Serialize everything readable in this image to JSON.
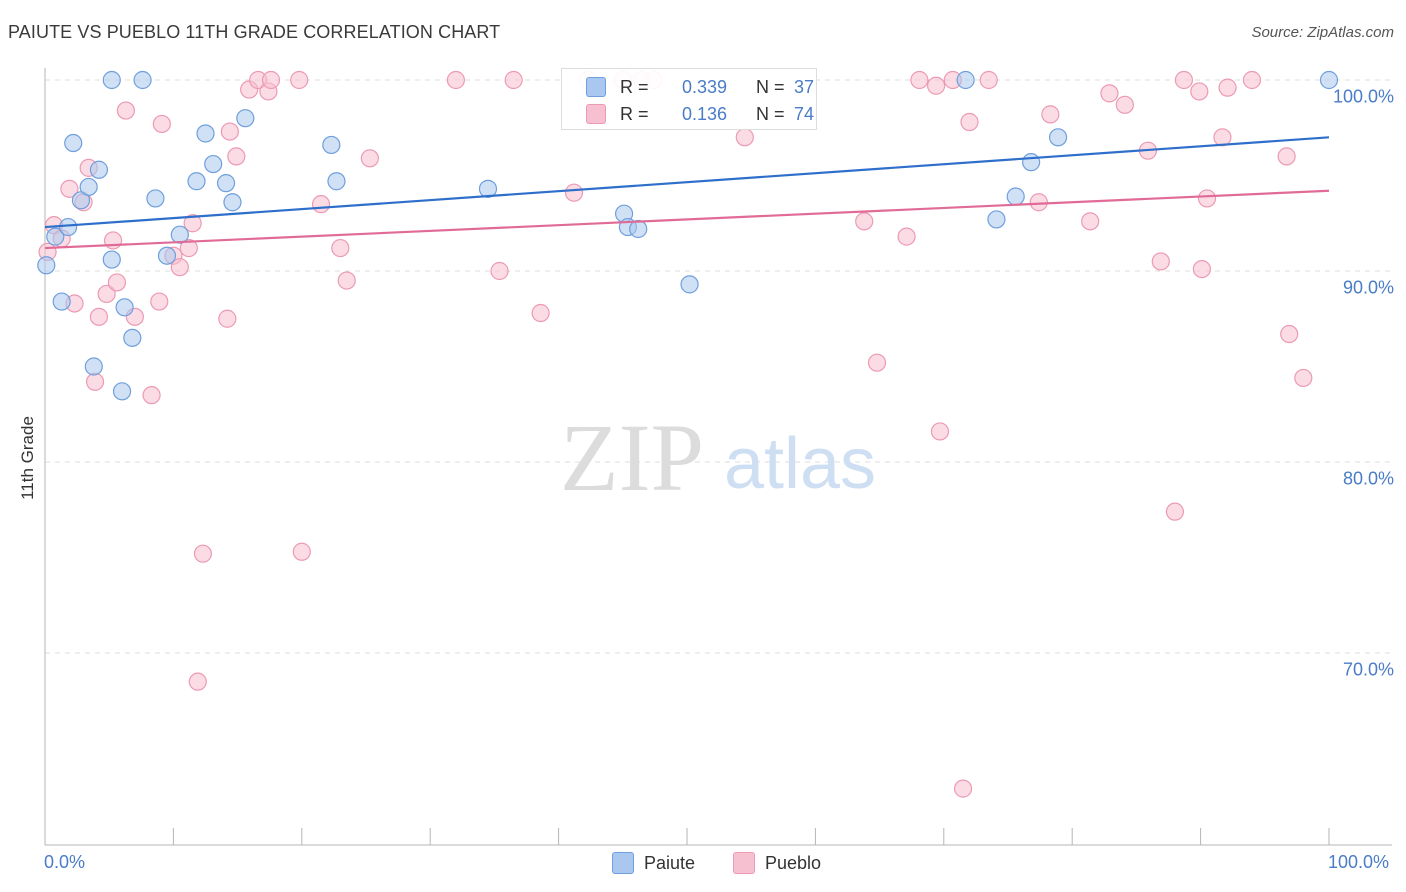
{
  "header": {
    "title": "PAIUTE VS PUEBLO 11TH GRADE CORRELATION CHART",
    "source": "Source: ZipAtlas.com"
  },
  "watermark": {
    "zip": "ZIP",
    "atlas": "atlas"
  },
  "colors": {
    "paiute_fill": "#aac8ef",
    "paiute_stroke": "#6f9fdc",
    "paiute_line": "#2e6fcb",
    "pueblo_fill": "#f7c0d0",
    "pueblo_stroke": "#ec9ab4",
    "pueblo_line": "#e06b96",
    "tick_text": "#4a7cc7",
    "grid": "#dddddd"
  },
  "stats": {
    "paiute": {
      "r_label": "R =",
      "r_value": "0.339",
      "n_label": "N =",
      "n_value": "37"
    },
    "pueblo": {
      "r_label": "R =",
      "r_value": "0.136",
      "n_label": "N =",
      "n_value": "74"
    }
  },
  "legend": {
    "paiute": "Paiute",
    "pueblo": "Pueblo"
  },
  "chart_data": {
    "type": "scatter",
    "title": "PAIUTE VS PUEBLO 11TH GRADE CORRELATION CHART",
    "xlabel": "",
    "ylabel": "11th Grade",
    "xlim": [
      0,
      100
    ],
    "ylim": [
      62,
      101
    ],
    "x_tick_labels": [
      "0.0%",
      "100.0%"
    ],
    "y_ticks": [
      {
        "value": 100,
        "label": "100.0%"
      },
      {
        "value": 90,
        "label": "90.0%"
      },
      {
        "value": 80,
        "label": "80.0%"
      },
      {
        "value": 70,
        "label": "70.0%"
      }
    ],
    "series": [
      {
        "name": "Paiute",
        "r": 0.339,
        "n": 37,
        "trend": {
          "x": [
            0,
            100
          ],
          "y": [
            92.3,
            97.0
          ]
        },
        "points": [
          [
            0.1,
            90.3
          ],
          [
            0.8,
            91.8
          ],
          [
            1.3,
            88.4
          ],
          [
            1.8,
            92.3
          ],
          [
            2.2,
            96.7
          ],
          [
            2.8,
            93.7
          ],
          [
            3.4,
            94.4
          ],
          [
            3.8,
            85.0
          ],
          [
            4.2,
            95.3
          ],
          [
            5.2,
            90.6
          ],
          [
            5.2,
            100.0
          ],
          [
            6.0,
            83.7
          ],
          [
            6.2,
            88.1
          ],
          [
            6.8,
            86.5
          ],
          [
            7.6,
            100.0
          ],
          [
            8.6,
            93.8
          ],
          [
            9.5,
            90.8
          ],
          [
            10.5,
            91.9
          ],
          [
            11.8,
            94.7
          ],
          [
            12.5,
            97.2
          ],
          [
            13.1,
            95.6
          ],
          [
            14.1,
            94.6
          ],
          [
            14.6,
            93.6
          ],
          [
            15.6,
            98.0
          ],
          [
            22.3,
            96.6
          ],
          [
            22.7,
            94.7
          ],
          [
            34.5,
            94.3
          ],
          [
            45.1,
            93.0
          ],
          [
            45.4,
            92.3
          ],
          [
            46.2,
            92.2
          ],
          [
            50.2,
            89.3
          ],
          [
            71.7,
            100.0
          ],
          [
            74.1,
            92.7
          ],
          [
            75.6,
            93.9
          ],
          [
            76.8,
            95.7
          ],
          [
            78.9,
            97.0
          ],
          [
            100.0,
            100.0
          ]
        ]
      },
      {
        "name": "Pueblo",
        "r": 0.136,
        "n": 74,
        "trend": {
          "x": [
            0,
            100
          ],
          "y": [
            91.2,
            94.2
          ]
        },
        "points": [
          [
            0.2,
            91.0
          ],
          [
            0.7,
            92.4
          ],
          [
            1.3,
            91.7
          ],
          [
            1.9,
            94.3
          ],
          [
            2.3,
            88.3
          ],
          [
            3.0,
            93.6
          ],
          [
            3.4,
            95.4
          ],
          [
            3.9,
            84.2
          ],
          [
            4.2,
            87.6
          ],
          [
            4.8,
            88.8
          ],
          [
            5.3,
            91.6
          ],
          [
            5.6,
            89.4
          ],
          [
            6.3,
            98.4
          ],
          [
            7.0,
            87.6
          ],
          [
            8.3,
            83.5
          ],
          [
            8.9,
            88.4
          ],
          [
            9.1,
            97.7
          ],
          [
            10.0,
            90.8
          ],
          [
            10.5,
            90.2
          ],
          [
            11.2,
            91.2
          ],
          [
            11.5,
            92.5
          ],
          [
            11.9,
            68.5
          ],
          [
            12.3,
            75.2
          ],
          [
            14.2,
            87.5
          ],
          [
            14.4,
            97.3
          ],
          [
            14.9,
            96.0
          ],
          [
            15.9,
            99.5
          ],
          [
            16.6,
            100.0
          ],
          [
            17.4,
            99.4
          ],
          [
            17.6,
            100.0
          ],
          [
            19.8,
            100.0
          ],
          [
            20.0,
            75.3
          ],
          [
            21.5,
            93.5
          ],
          [
            23.0,
            91.2
          ],
          [
            23.5,
            89.5
          ],
          [
            25.3,
            95.9
          ],
          [
            32.0,
            100.0
          ],
          [
            35.4,
            90.0
          ],
          [
            36.5,
            100.0
          ],
          [
            38.6,
            87.8
          ],
          [
            41.2,
            94.1
          ],
          [
            42.3,
            100.0
          ],
          [
            45.0,
            100.0
          ],
          [
            46.5,
            100.0
          ],
          [
            47.4,
            100.0
          ],
          [
            54.5,
            97.0
          ],
          [
            63.8,
            92.6
          ],
          [
            64.8,
            85.2
          ],
          [
            67.1,
            91.8
          ],
          [
            68.1,
            100.0
          ],
          [
            69.4,
            99.7
          ],
          [
            69.7,
            81.6
          ],
          [
            70.7,
            100.0
          ],
          [
            71.5,
            62.9
          ],
          [
            72.0,
            97.8
          ],
          [
            73.5,
            100.0
          ],
          [
            77.4,
            93.6
          ],
          [
            78.3,
            98.2
          ],
          [
            81.4,
            92.6
          ],
          [
            82.9,
            99.3
          ],
          [
            84.1,
            98.7
          ],
          [
            85.9,
            96.3
          ],
          [
            86.9,
            90.5
          ],
          [
            88.0,
            77.4
          ],
          [
            88.7,
            100.0
          ],
          [
            89.9,
            99.4
          ],
          [
            90.1,
            90.1
          ],
          [
            90.5,
            93.8
          ],
          [
            91.7,
            97.0
          ],
          [
            92.1,
            99.6
          ],
          [
            94.0,
            100.0
          ],
          [
            96.7,
            96.0
          ],
          [
            96.9,
            86.7
          ],
          [
            98.0,
            84.4
          ]
        ]
      }
    ]
  }
}
